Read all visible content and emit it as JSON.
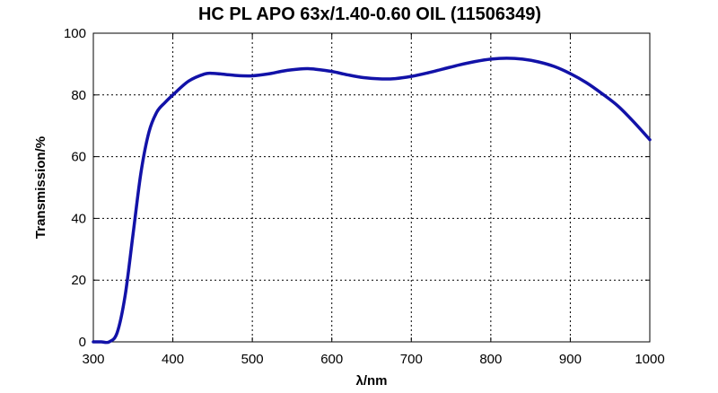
{
  "chart_data": {
    "type": "line",
    "title": "HC PL APO 63x/1.40-0.60 OIL (11506349)",
    "xlabel": "λ/nm",
    "ylabel": "Transmission/%",
    "xlim": [
      300,
      1000
    ],
    "ylim": [
      0,
      100
    ],
    "x_ticks": [
      300,
      400,
      500,
      600,
      700,
      800,
      900,
      1000
    ],
    "y_ticks": [
      0,
      20,
      40,
      60,
      80,
      100
    ],
    "grid": true,
    "legend": "none",
    "colors": {
      "series": "#1212a8"
    },
    "series": [
      {
        "x": [
          300,
          310,
          320,
          330,
          340,
          350,
          360,
          370,
          380,
          390,
          400,
          420,
          440,
          450,
          460,
          480,
          500,
          520,
          540,
          560,
          570,
          580,
          600,
          620,
          640,
          660,
          680,
          700,
          720,
          740,
          760,
          780,
          800,
          820,
          840,
          860,
          880,
          900,
          920,
          940,
          960,
          980,
          1000
        ],
        "y": [
          0,
          0,
          0,
          3,
          15,
          35,
          55,
          68,
          74.5,
          77.5,
          80,
          84.5,
          86.8,
          87,
          86.8,
          86.3,
          86.2,
          86.8,
          87.8,
          88.4,
          88.5,
          88.3,
          87.6,
          86.5,
          85.6,
          85.2,
          85.3,
          86,
          87.1,
          88.4,
          89.7,
          90.8,
          91.6,
          91.9,
          91.6,
          90.7,
          89.2,
          86.9,
          84,
          80.4,
          76.4,
          71.2,
          65.5
        ]
      }
    ]
  }
}
